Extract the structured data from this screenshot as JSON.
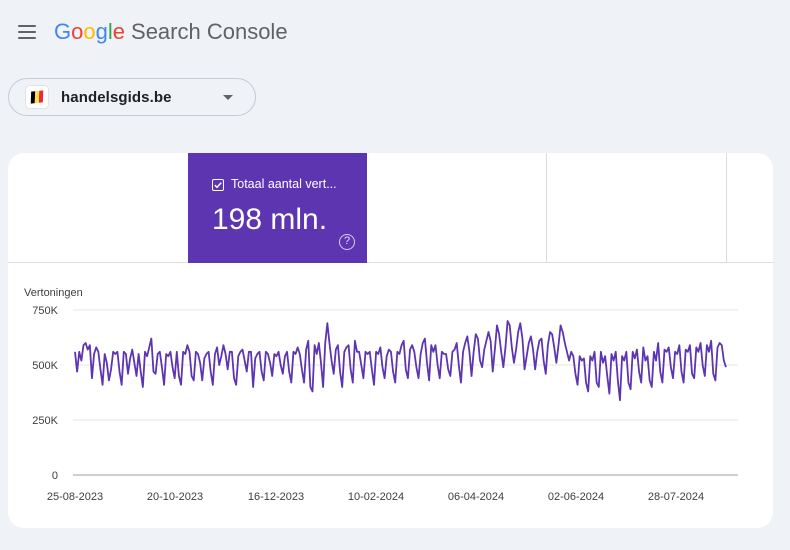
{
  "header": {
    "logo_letters": [
      {
        "ch": "G",
        "color": "#4285F4"
      },
      {
        "ch": "o",
        "color": "#EA4335"
      },
      {
        "ch": "o",
        "color": "#FBBC05"
      },
      {
        "ch": "g",
        "color": "#4285F4"
      },
      {
        "ch": "l",
        "color": "#34A853"
      },
      {
        "ch": "e",
        "color": "#EA4335"
      }
    ],
    "product": "Search Console",
    "menu_icon": "hamburger-menu-icon"
  },
  "property": {
    "name": "handelsgids.be",
    "flag_colors": [
      "#000000",
      "#FAE042",
      "#ED2939"
    ]
  },
  "metrics": {
    "active": {
      "label": "Totaal aantal vert...",
      "value": "198 mln.",
      "color": "#5e35b1",
      "checked": true
    }
  },
  "chart_data": {
    "type": "line",
    "ylabel": "Vertoningen",
    "ylim": [
      0,
      750000
    ],
    "y_ticks": [
      "750K",
      "500K",
      "250K",
      "0"
    ],
    "x_ticks": [
      "25-08-2023",
      "20-10-2023",
      "16-12-2023",
      "10-02-2024",
      "06-04-2024",
      "02-06-2024",
      "28-07-2024"
    ],
    "x_start": "2023-08-25",
    "line_color": "#5e35b1",
    "series": [
      {
        "values": [
          560000,
          470000,
          560000,
          520000,
          590000,
          600000,
          570000,
          590000,
          440000,
          550000,
          580000,
          560000,
          480000,
          410000,
          550000,
          510000,
          430000,
          480000,
          560000,
          550000,
          560000,
          470000,
          410000,
          560000,
          550000,
          460000,
          530000,
          570000,
          510000,
          450000,
          550000,
          470000,
          400000,
          560000,
          540000,
          580000,
          620000,
          470000,
          460000,
          550000,
          560000,
          490000,
          410000,
          550000,
          540000,
          560000,
          490000,
          440000,
          560000,
          450000,
          410000,
          560000,
          550000,
          590000,
          560000,
          450000,
          430000,
          560000,
          550000,
          510000,
          430000,
          530000,
          550000,
          560000,
          470000,
          410000,
          550000,
          580000,
          500000,
          540000,
          590000,
          550000,
          480000,
          560000,
          560000,
          440000,
          410000,
          540000,
          560000,
          570000,
          520000,
          470000,
          560000,
          560000,
          400000,
          530000,
          550000,
          560000,
          470000,
          430000,
          560000,
          550000,
          510000,
          450000,
          550000,
          540000,
          560000,
          500000,
          460000,
          540000,
          560000,
          470000,
          420000,
          560000,
          550000,
          580000,
          550000,
          480000,
          420000,
          570000,
          610000,
          400000,
          380000,
          590000,
          550000,
          600000,
          510000,
          400000,
          600000,
          690000,
          600000,
          520000,
          460000,
          570000,
          590000,
          470000,
          400000,
          560000,
          580000,
          590000,
          480000,
          420000,
          610000,
          560000,
          560000,
          500000,
          440000,
          560000,
          550000,
          560000,
          480000,
          410000,
          560000,
          550000,
          580000,
          490000,
          440000,
          540000,
          570000,
          560000,
          470000,
          420000,
          560000,
          550000,
          590000,
          610000,
          480000,
          440000,
          570000,
          590000,
          560000,
          490000,
          440000,
          550000,
          600000,
          620000,
          510000,
          430000,
          590000,
          560000,
          590000,
          500000,
          440000,
          560000,
          550000,
          550000,
          480000,
          450000,
          560000,
          570000,
          600000,
          500000,
          420000,
          560000,
          600000,
          630000,
          560000,
          450000,
          560000,
          640000,
          620000,
          520000,
          490000,
          570000,
          610000,
          650000,
          610000,
          470000,
          570000,
          680000,
          640000,
          560000,
          490000,
          580000,
          700000,
          680000,
          580000,
          510000,
          570000,
          650000,
          690000,
          620000,
          480000,
          540000,
          600000,
          630000,
          570000,
          480000,
          560000,
          610000,
          620000,
          520000,
          460000,
          590000,
          650000,
          640000,
          580000,
          510000,
          590000,
          680000,
          650000,
          600000,
          560000,
          520000,
          560000,
          540000,
          460000,
          410000,
          540000,
          520000,
          530000,
          420000,
          380000,
          540000,
          520000,
          560000,
          420000,
          400000,
          560000,
          510000,
          540000,
          450000,
          370000,
          550000,
          520000,
          560000,
          430000,
          340000,
          540000,
          520000,
          560000,
          420000,
          390000,
          560000,
          530000,
          570000,
          470000,
          420000,
          580000,
          520000,
          540000,
          430000,
          400000,
          560000,
          520000,
          600000,
          470000,
          420000,
          570000,
          560000,
          580000,
          490000,
          440000,
          560000,
          550000,
          590000,
          470000,
          420000,
          570000,
          560000,
          590000,
          460000,
          440000,
          580000,
          560000,
          600000,
          500000,
          450000,
          590000,
          560000,
          610000,
          460000,
          430000,
          580000,
          600000,
          590000,
          520000,
          490000
        ]
      }
    ]
  }
}
